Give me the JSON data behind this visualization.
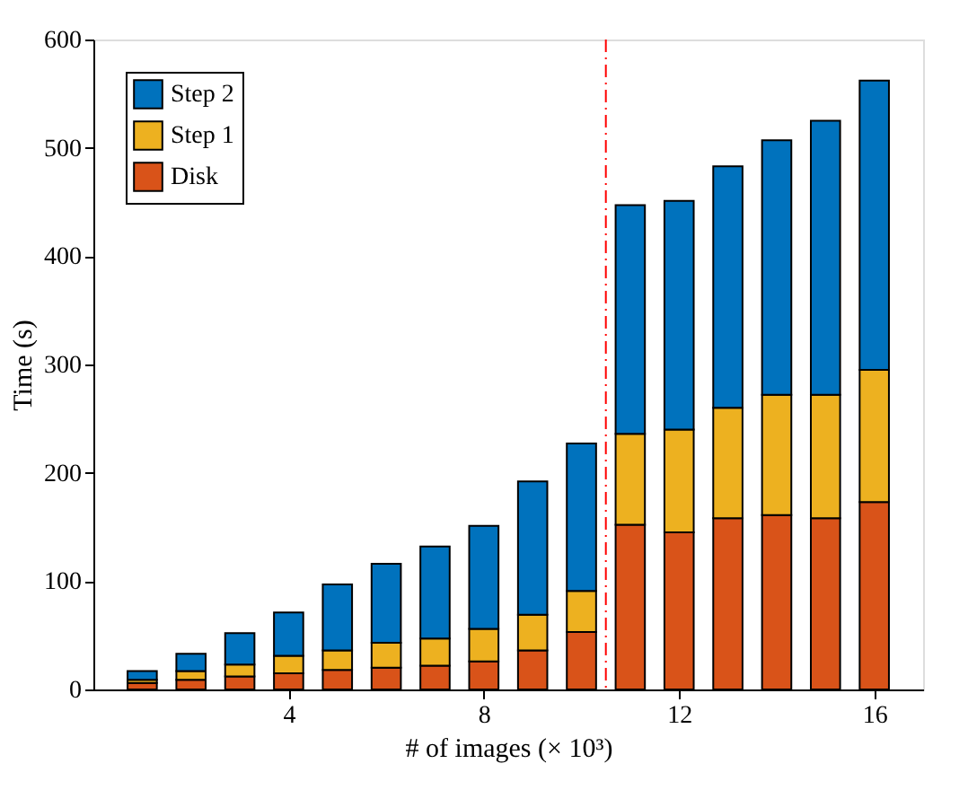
{
  "chart_data": {
    "type": "bar",
    "stacked": true,
    "xlabel": "# of images (× 10³)",
    "ylabel": "Time (s)",
    "x": [
      1,
      2,
      3,
      4,
      5,
      6,
      7,
      8,
      9,
      10,
      11,
      12,
      13,
      14,
      15,
      16
    ],
    "series": [
      {
        "name": "Disk",
        "color": "#d95319",
        "values": [
          6,
          9,
          12,
          15,
          18,
          20,
          22,
          26,
          36,
          53,
          152,
          145,
          158,
          161,
          158,
          173
        ]
      },
      {
        "name": "Step 1",
        "color": "#edb120",
        "values": [
          3,
          8,
          11,
          16,
          18,
          23,
          25,
          30,
          33,
          38,
          84,
          95,
          102,
          111,
          114,
          122
        ]
      },
      {
        "name": "Step 2",
        "color": "#0072bd",
        "values": [
          8,
          16,
          29,
          40,
          61,
          73,
          85,
          95,
          123,
          136,
          211,
          211,
          223,
          235,
          253,
          267
        ]
      }
    ],
    "xlim": [
      0,
      17
    ],
    "xticks": [
      4,
      8,
      12,
      16
    ],
    "ylim": [
      0,
      600
    ],
    "yticks": [
      0,
      100,
      200,
      300,
      400,
      500,
      600
    ],
    "ref_lines": [
      {
        "axis": "x",
        "value": 10.5,
        "color": "#ff0000",
        "line_style": "dashdot"
      }
    ],
    "grid": false,
    "legend": "top left"
  }
}
